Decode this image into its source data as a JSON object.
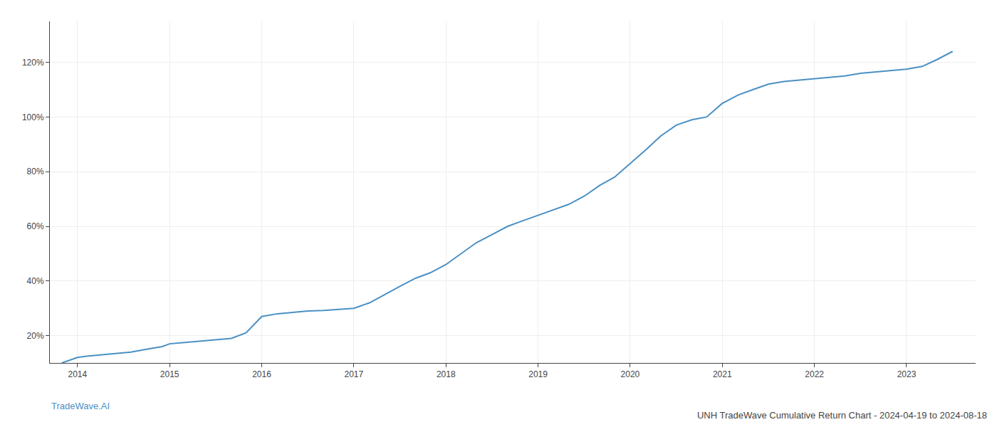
{
  "chart_data": {
    "type": "line",
    "title": "UNH TradeWave Cumulative Return Chart - 2024-04-19 to 2024-08-18",
    "annotations": [
      "TradeWave.AI"
    ],
    "x": [
      2013.83,
      2013.92,
      2014.0,
      2014.1,
      2014.25,
      2014.4,
      2014.58,
      2014.75,
      2014.92,
      2015.0,
      2015.17,
      2015.33,
      2015.5,
      2015.67,
      2015.83,
      2016.0,
      2016.17,
      2016.33,
      2016.5,
      2016.67,
      2016.83,
      2017.0,
      2017.17,
      2017.33,
      2017.5,
      2017.67,
      2017.83,
      2018.0,
      2018.17,
      2018.33,
      2018.5,
      2018.67,
      2018.83,
      2019.0,
      2019.17,
      2019.33,
      2019.5,
      2019.67,
      2019.83,
      2020.0,
      2020.17,
      2020.33,
      2020.5,
      2020.67,
      2020.83,
      2021.0,
      2021.17,
      2021.33,
      2021.5,
      2021.67,
      2021.83,
      2022.0,
      2022.17,
      2022.33,
      2022.5,
      2022.67,
      2022.83,
      2023.0,
      2023.17,
      2023.33,
      2023.5
    ],
    "values": [
      10,
      11,
      12,
      12.5,
      13,
      13.5,
      14,
      15,
      16,
      17,
      17.5,
      18,
      18.5,
      19,
      21,
      27,
      28,
      28.5,
      29,
      29.2,
      29.5,
      30,
      32,
      35,
      38,
      41,
      43,
      46,
      50,
      54,
      57,
      60,
      62,
      64,
      66,
      68,
      71,
      75,
      78,
      83,
      88,
      93,
      97,
      99,
      100,
      105,
      108,
      110,
      112,
      113,
      113.5,
      114,
      114.5,
      115,
      116,
      116.5,
      117,
      117.5,
      118.5,
      121,
      124
    ],
    "color": "#4a90c4",
    "xlim": [
      2013.7,
      2023.75
    ],
    "xticks": [
      2014,
      2015,
      2016,
      2017,
      2018,
      2019,
      2020,
      2021,
      2022,
      2023
    ],
    "ylim": [
      10,
      135
    ],
    "yticks": [
      {
        "value": 20,
        "label": "20%"
      },
      {
        "value": 40,
        "label": "40%"
      },
      {
        "value": 60,
        "label": "60%"
      },
      {
        "value": 80,
        "label": "80%"
      },
      {
        "value": 100,
        "label": "100%"
      },
      {
        "value": 120,
        "label": "120%"
      }
    ],
    "grid": true
  }
}
